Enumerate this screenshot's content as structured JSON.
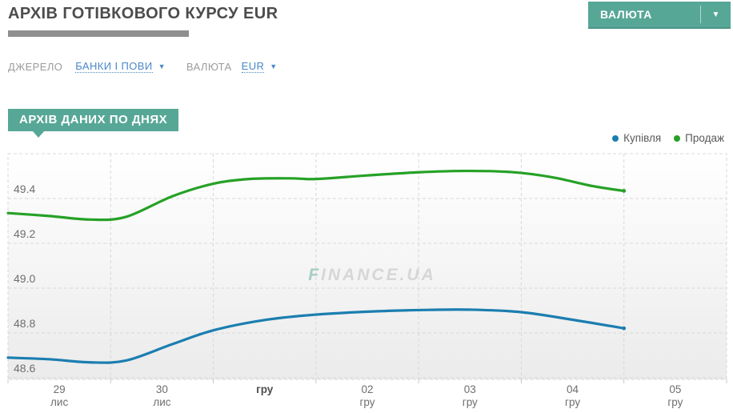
{
  "header": {
    "title": "АРХІВ ГОТІВКОВОГО КУРСУ EUR",
    "currency_button": {
      "label": "ВАЛЮТА",
      "caret": "▼"
    }
  },
  "filters": {
    "source_label": "ДЖЕРЕЛО",
    "source_value": "БАНКИ І ПОВИ",
    "source_caret": "▼",
    "currency_label": "ВАЛЮТА",
    "currency_value": "EUR",
    "currency_caret": "▼"
  },
  "section": {
    "badge": "АРХІВ ДАНИХ ПО ДНЯХ"
  },
  "legend": [
    {
      "label": "Купівля",
      "color": "#1b7eb0"
    },
    {
      "label": "Продаж",
      "color": "#26a126"
    }
  ],
  "watermark": {
    "first": "F",
    "rest": "INANCE.UA"
  },
  "colors": {
    "accent_teal": "#57a797",
    "link_blue": "#4a87c8",
    "buy_line": "#1b7eb0",
    "sell_line": "#26a126",
    "grid": "#d8d8d8",
    "axis_text": "#6e6e6e"
  },
  "chart_data": {
    "type": "line",
    "title": "Архів готівкового курсу EUR по днях",
    "xlabel": "",
    "ylabel": "",
    "grid": true,
    "legend_position": "top-right",
    "y_ticks": [
      48.6,
      48.8,
      49.0,
      49.2,
      49.4
    ],
    "y_tick_labels": [
      "48.6",
      "48.8",
      "49.0",
      "49.2",
      "49.4"
    ],
    "y_range": [
      48.593,
      49.6
    ],
    "x_segments": 7,
    "x_categories": [
      {
        "day": "29",
        "month": "лис",
        "bold": false
      },
      {
        "day": "30",
        "month": "лис",
        "bold": false
      },
      {
        "day": "гру",
        "month": "",
        "bold": true
      },
      {
        "day": "02",
        "month": "гру",
        "bold": false
      },
      {
        "day": "03",
        "month": "гру",
        "bold": false
      },
      {
        "day": "04",
        "month": "гру",
        "bold": false
      },
      {
        "day": "05",
        "month": "гру",
        "bold": false
      }
    ],
    "series": [
      {
        "name": "Купівля",
        "color": "#1b7eb0",
        "points": [
          [
            0,
            48.69
          ],
          [
            0.4,
            48.683
          ],
          [
            0.8,
            48.669
          ],
          [
            1.15,
            48.677
          ],
          [
            1.6,
            48.75
          ],
          [
            2.0,
            48.812
          ],
          [
            2.5,
            48.858
          ],
          [
            3.0,
            48.882
          ],
          [
            3.6,
            48.897
          ],
          [
            4.1,
            48.903
          ],
          [
            4.5,
            48.904
          ],
          [
            5.0,
            48.893
          ],
          [
            5.5,
            48.859
          ],
          [
            6.0,
            48.821
          ]
        ]
      },
      {
        "name": "Продаж",
        "color": "#26a126",
        "points": [
          [
            0,
            49.335
          ],
          [
            0.4,
            49.322
          ],
          [
            0.8,
            49.306
          ],
          [
            1.15,
            49.318
          ],
          [
            1.6,
            49.41
          ],
          [
            2.0,
            49.466
          ],
          [
            2.35,
            49.487
          ],
          [
            2.75,
            49.49
          ],
          [
            3.0,
            49.487
          ],
          [
            3.5,
            49.503
          ],
          [
            4.0,
            49.517
          ],
          [
            4.45,
            49.523
          ],
          [
            4.9,
            49.518
          ],
          [
            5.3,
            49.495
          ],
          [
            5.7,
            49.455
          ],
          [
            6.0,
            49.434
          ]
        ]
      }
    ]
  }
}
